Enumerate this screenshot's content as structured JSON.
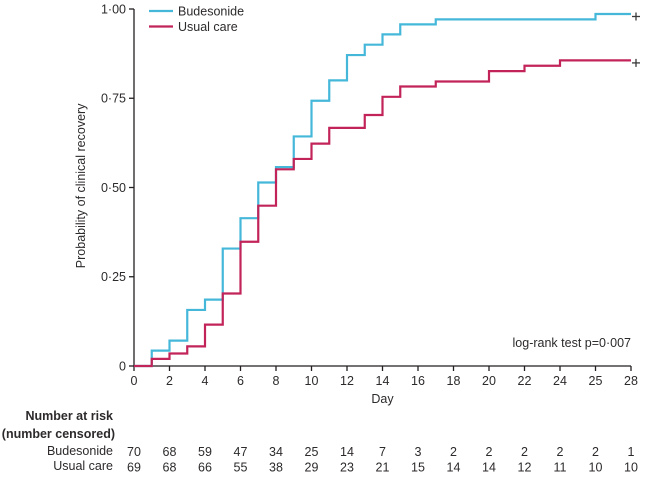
{
  "chart_data": {
    "type": "line",
    "subtype": "kaplan-meier-step",
    "title": "",
    "xlabel": "Day",
    "ylabel": "Probability of clinical recovery",
    "annotation": "log-rank test p=0·007",
    "xlim": [
      0,
      28
    ],
    "ylim": [
      0,
      1
    ],
    "grid": false,
    "legend_position": "top-left-inside",
    "axis_color": "#231f20",
    "text_color": "#2d2a2b",
    "x_tick_labels": [
      "0",
      "2",
      "4",
      "6",
      "8",
      "10",
      "12",
      "14",
      "16",
      "18",
      "20",
      "22",
      "24",
      "25",
      "28"
    ],
    "y_ticks": [
      {
        "value": 0,
        "label": "0"
      },
      {
        "value": 0.25,
        "label": "0·25"
      },
      {
        "value": 0.5,
        "label": "0·50"
      },
      {
        "value": 0.75,
        "label": "0·75"
      },
      {
        "value": 1.0,
        "label": "1·00"
      }
    ],
    "legend": [
      {
        "name": "Budesonide",
        "color": "#45b8da"
      },
      {
        "name": "Usual care",
        "color": "#c2245a"
      }
    ],
    "series": [
      {
        "name": "Budesonide",
        "color": "#45b8da",
        "steps": [
          [
            0,
            0
          ],
          [
            1,
            0.043
          ],
          [
            2,
            0.071
          ],
          [
            3,
            0.157
          ],
          [
            4,
            0.186
          ],
          [
            5,
            0.329
          ],
          [
            6,
            0.414
          ],
          [
            7,
            0.514
          ],
          [
            8,
            0.557
          ],
          [
            9,
            0.643
          ],
          [
            10,
            0.743
          ],
          [
            11,
            0.8
          ],
          [
            12,
            0.871
          ],
          [
            13,
            0.9
          ],
          [
            14,
            0.929
          ],
          [
            15,
            0.957
          ],
          [
            17,
            0.971
          ],
          [
            26,
            0.986
          ]
        ],
        "end_day": 28,
        "censored_at_end": true
      },
      {
        "name": "Usual care",
        "color": "#c2245a",
        "steps": [
          [
            0,
            0
          ],
          [
            1,
            0.02
          ],
          [
            2,
            0.035
          ],
          [
            3,
            0.055
          ],
          [
            4,
            0.116
          ],
          [
            5,
            0.203
          ],
          [
            6,
            0.348
          ],
          [
            7,
            0.449
          ],
          [
            8,
            0.551
          ],
          [
            9,
            0.58
          ],
          [
            10,
            0.623
          ],
          [
            11,
            0.667
          ],
          [
            13,
            0.703
          ],
          [
            14,
            0.754
          ],
          [
            15,
            0.783
          ],
          [
            17,
            0.797
          ],
          [
            20,
            0.826
          ],
          [
            22,
            0.841
          ],
          [
            24,
            0.856
          ]
        ],
        "end_day": 28,
        "censored_at_end": true
      }
    ],
    "censor_mark_color": "#3a3a3a",
    "risk_table": {
      "header1": "Number at risk",
      "header2": "(number censored)",
      "rows": [
        {
          "label": "Budesonide",
          "values": [
            "70",
            "68",
            "59",
            "47",
            "34",
            "25",
            "14",
            "7",
            "3",
            "2",
            "2",
            "2",
            "2",
            "2",
            "1"
          ]
        },
        {
          "label": "Usual care",
          "values": [
            "69",
            "68",
            "66",
            "55",
            "38",
            "29",
            "23",
            "21",
            "15",
            "14",
            "14",
            "12",
            "11",
            "10",
            "10"
          ]
        }
      ]
    }
  }
}
